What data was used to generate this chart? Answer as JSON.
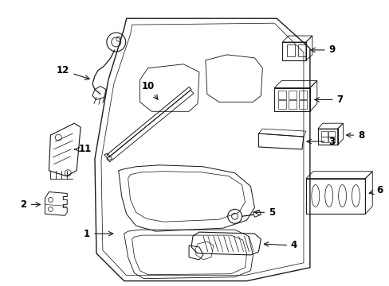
{
  "background_color": "#ffffff",
  "line_color": "#1a1a1a",
  "label_color": "#000000",
  "lw": 0.9,
  "label_fontsize": 8.5
}
